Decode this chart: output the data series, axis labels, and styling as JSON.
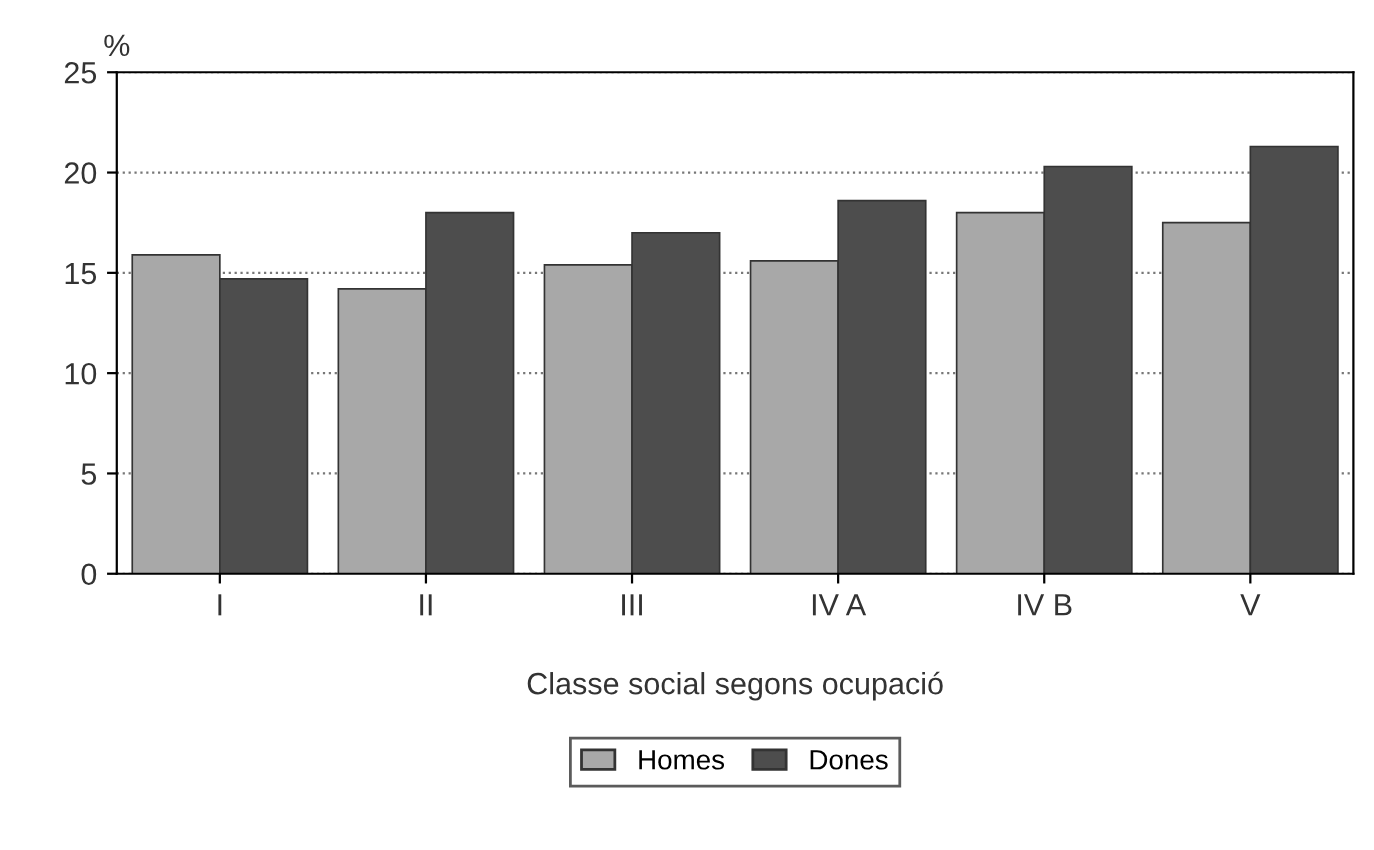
{
  "chart_data": {
    "type": "bar",
    "ylabel": "%",
    "xlabel": "Classe social segons ocupació",
    "categories": [
      "I",
      "II",
      "III",
      "IV A",
      "IV B",
      "V"
    ],
    "series": [
      {
        "name": "Homes",
        "color": "#a8a8a8",
        "values": [
          15.9,
          14.2,
          15.4,
          15.6,
          18.0,
          17.5
        ]
      },
      {
        "name": "Dones",
        "color": "#4d4d4d",
        "values": [
          14.7,
          18.0,
          17.0,
          18.6,
          20.3,
          21.3
        ]
      }
    ],
    "ylim": [
      0,
      25
    ],
    "yticks": [
      0,
      5,
      10,
      15,
      20,
      25
    ],
    "grid": "y",
    "legend": "bottom"
  }
}
